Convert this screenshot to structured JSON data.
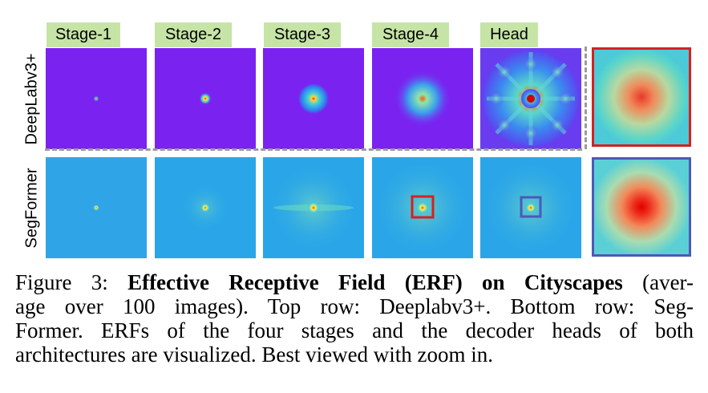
{
  "figure": {
    "stage_labels": [
      "Stage-1",
      "Stage-2",
      "Stage-3",
      "Stage-4",
      "Head"
    ],
    "row_labels": [
      "DeepLabv3+",
      "SegFormer"
    ],
    "colors": {
      "label_bg": "#c6e4a6",
      "deeplab_bg": "#7a22f0",
      "segformer_bg": "#2aa6e8",
      "highlight_red": "#d62020",
      "highlight_blue": "#4a5ab8",
      "separator": "#9a9a9a"
    }
  },
  "caption": {
    "line1_prefix": "Figure 3: ",
    "line1_bold": "Effective Receptive Field (ERF) on Cityscapes",
    "line1_suffix": " (aver-",
    "line2": "age over 100 images). Top row: Deeplabv3+. Bottom row: Seg-",
    "line3": "Former. ERFs of the four stages and the decoder heads of both",
    "line4": "architectures are visualized. Best viewed with zoom in."
  }
}
